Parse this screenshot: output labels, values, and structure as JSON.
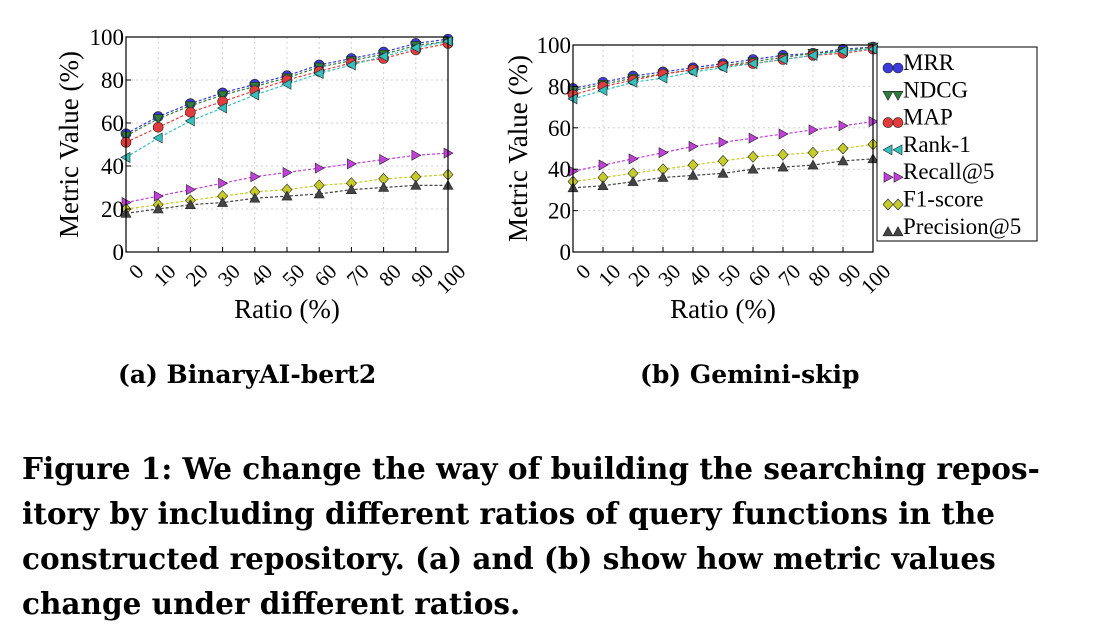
{
  "chart_data": [
    {
      "type": "line",
      "panel_label": "(a) BinaryAI-bert2",
      "xlabel": "Ratio (%)",
      "ylabel": "Metric Value (%)",
      "xlim": [
        0,
        100
      ],
      "ylim": [
        0,
        100
      ],
      "x": [
        0,
        10,
        20,
        30,
        40,
        50,
        60,
        70,
        80,
        90,
        100
      ],
      "x_ticks": [
        "0",
        "10",
        "20",
        "30",
        "40",
        "50",
        "60",
        "70",
        "80",
        "90",
        "100"
      ],
      "y_ticks": [
        "0",
        "20",
        "40",
        "60",
        "80",
        "100"
      ],
      "grid": true,
      "series": [
        {
          "name": "MRR",
          "values": [
            55,
            63,
            69,
            74,
            78,
            82,
            87,
            90,
            93,
            97,
            99
          ]
        },
        {
          "name": "NDCG",
          "values": [
            54,
            62,
            68,
            73,
            77,
            81,
            86,
            89,
            92,
            96,
            98
          ]
        },
        {
          "name": "MAP",
          "values": [
            51,
            58,
            65,
            70,
            75,
            80,
            84,
            88,
            90,
            94,
            97
          ]
        },
        {
          "name": "Rank-1",
          "values": [
            44,
            53,
            61,
            67,
            73,
            78,
            83,
            87,
            91,
            95,
            98
          ]
        },
        {
          "name": "Recall@5",
          "values": [
            23,
            26,
            29,
            32,
            35,
            37,
            39,
            41,
            43,
            45,
            46
          ]
        },
        {
          "name": "F1-score",
          "values": [
            20,
            22,
            24,
            26,
            28,
            29,
            31,
            32,
            34,
            35,
            36
          ]
        },
        {
          "name": "Precision@5",
          "values": [
            18,
            20,
            22,
            23,
            25,
            26,
            27,
            29,
            30,
            31,
            31
          ]
        }
      ]
    },
    {
      "type": "line",
      "panel_label": "(b) Gemini-skip",
      "xlabel": "Ratio (%)",
      "ylabel": "Metric Value (%)",
      "xlim": [
        0,
        100
      ],
      "ylim": [
        0,
        100
      ],
      "x": [
        0,
        10,
        20,
        30,
        40,
        50,
        60,
        70,
        80,
        90,
        100
      ],
      "x_ticks": [
        "0",
        "10",
        "20",
        "30",
        "40",
        "50",
        "60",
        "70",
        "80",
        "90",
        "100"
      ],
      "y_ticks": [
        "0",
        "20",
        "40",
        "60",
        "80",
        "100"
      ],
      "grid": true,
      "legend_position": "outside-right",
      "series": [
        {
          "name": "MRR",
          "values": [
            79,
            82,
            85,
            87,
            89,
            91,
            93,
            95,
            96,
            98,
            99
          ]
        },
        {
          "name": "NDCG",
          "values": [
            78,
            81,
            84,
            86,
            88,
            90,
            92,
            94,
            96,
            97,
            99
          ]
        },
        {
          "name": "MAP",
          "values": [
            76,
            80,
            83,
            86,
            88,
            90,
            91,
            93,
            95,
            96,
            98
          ]
        },
        {
          "name": "Rank-1",
          "values": [
            74,
            78,
            82,
            84,
            87,
            89,
            91,
            93,
            95,
            97,
            98
          ]
        },
        {
          "name": "Recall@5",
          "values": [
            39,
            42,
            45,
            48,
            51,
            53,
            55,
            57,
            59,
            61,
            63
          ]
        },
        {
          "name": "F1-score",
          "values": [
            34,
            36,
            38,
            40,
            42,
            44,
            46,
            47,
            48,
            50,
            52
          ]
        },
        {
          "name": "Precision@5",
          "values": [
            31,
            32,
            34,
            36,
            37,
            38,
            40,
            41,
            42,
            44,
            45
          ]
        }
      ]
    }
  ],
  "series_styles": [
    {
      "color": "#3b3bdc",
      "marker": "circle"
    },
    {
      "color": "#2e7d3c",
      "marker": "triangle-down"
    },
    {
      "color": "#e23b3b",
      "marker": "circle"
    },
    {
      "color": "#35c0c0",
      "marker": "triangle-left"
    },
    {
      "color": "#c040d8",
      "marker": "triangle-right"
    },
    {
      "color": "#c6cc2a",
      "marker": "diamond"
    },
    {
      "color": "#444444",
      "marker": "triangle-up"
    }
  ],
  "caption": {
    "lines": [
      "Figure 1: We change the way of building the searching repos-",
      "itory by including different ratios of query functions in the",
      "constructed repository. (a) and (b) show how metric values",
      "change under different ratios."
    ]
  }
}
